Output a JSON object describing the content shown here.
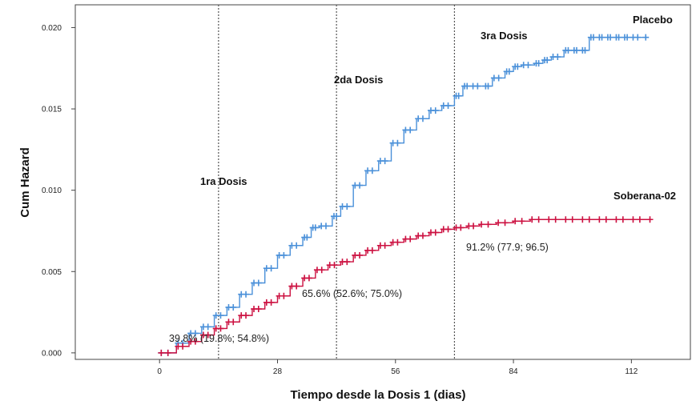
{
  "chart_data": {
    "type": "line",
    "step": true,
    "xlabel": "Tiempo desde la Dosis 1 (dias)",
    "ylabel": "Cum Hazard",
    "xlim": [
      -20,
      126
    ],
    "ylim": [
      -0.0004,
      0.0214
    ],
    "xticks": [
      0,
      28,
      56,
      84,
      112
    ],
    "xtick_labels": [
      "0",
      "28",
      "56",
      "84",
      "112"
    ],
    "yticks": [
      0.0,
      0.005,
      0.01,
      0.015,
      0.02
    ],
    "ytick_labels": [
      "0.000",
      "0.005",
      "0.010",
      "0.015",
      "0.020"
    ],
    "grid": false,
    "dose_lines": [
      {
        "x": 14,
        "label": "1ra Dosis"
      },
      {
        "x": 42,
        "label": "2da Dosis"
      },
      {
        "x": 70,
        "label": "3ra Dosis"
      }
    ],
    "efficacy_labels": [
      {
        "text": "39.8% (19.8%; 54.8%)"
      },
      {
        "text": "65.6% (52.6%; 75.0%)"
      },
      {
        "text": "91.2% (77.9; 96.5)"
      }
    ],
    "series": [
      {
        "name": "Placebo",
        "color": "#4a90d9",
        "x": [
          0,
          4,
          7,
          10,
          13,
          16,
          19,
          22,
          25,
          28,
          31,
          34,
          36,
          38,
          41,
          43,
          46,
          49,
          52,
          55,
          58,
          61,
          64,
          67,
          70,
          72,
          74,
          77,
          79,
          82,
          84,
          86,
          89,
          91,
          93,
          96,
          98,
          100,
          102,
          104,
          106,
          108,
          110,
          112,
          115
        ],
        "y": [
          0.0,
          0.0006,
          0.0012,
          0.0016,
          0.0023,
          0.0028,
          0.0036,
          0.0043,
          0.0052,
          0.006,
          0.0066,
          0.0071,
          0.0077,
          0.0078,
          0.0084,
          0.009,
          0.0103,
          0.0112,
          0.0118,
          0.0129,
          0.0137,
          0.0144,
          0.0149,
          0.0152,
          0.0158,
          0.0164,
          0.0164,
          0.0164,
          0.0169,
          0.0173,
          0.0176,
          0.0177,
          0.0178,
          0.018,
          0.0182,
          0.0186,
          0.0186,
          0.0186,
          0.0194,
          0.0194,
          0.0194,
          0.0194,
          0.0194,
          0.0194,
          0.0194
        ]
      },
      {
        "name": "Soberana-02",
        "color": "#cc1040",
        "x": [
          0,
          4,
          7,
          10,
          13,
          16,
          19,
          22,
          25,
          28,
          31,
          34,
          37,
          40,
          43,
          46,
          49,
          52,
          55,
          58,
          61,
          64,
          67,
          70,
          73,
          76,
          80,
          84,
          88,
          92,
          96,
          100,
          104,
          108,
          112,
          116
        ],
        "y": [
          0.0,
          0.0004,
          0.0007,
          0.0011,
          0.0015,
          0.0019,
          0.0023,
          0.0027,
          0.0031,
          0.0035,
          0.0041,
          0.0046,
          0.0051,
          0.0054,
          0.0056,
          0.006,
          0.0063,
          0.0066,
          0.0068,
          0.007,
          0.0072,
          0.0074,
          0.0076,
          0.0077,
          0.0078,
          0.0079,
          0.008,
          0.0081,
          0.0082,
          0.0082,
          0.0082,
          0.0082,
          0.0082,
          0.0082,
          0.0082,
          0.0082
        ]
      }
    ]
  }
}
